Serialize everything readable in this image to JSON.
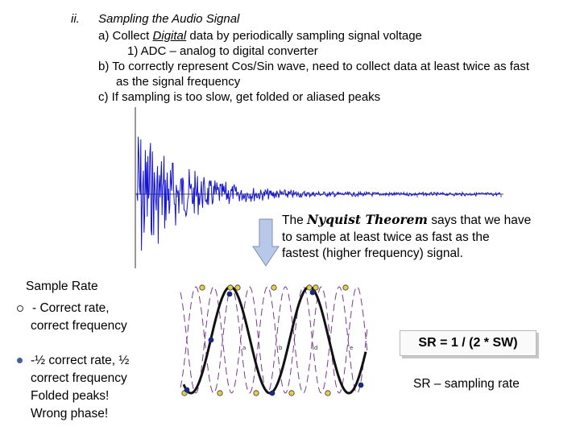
{
  "outline": {
    "numeral": "ii.",
    "heading": "Sampling the Audio Signal",
    "line_a_prefix": "a) Collect ",
    "line_a_word": "Digital",
    "line_a_suffix": " data by periodically sampling signal voltage",
    "line_a1": "1) ADC – analog to digital converter",
    "line_b": "b) To correctly represent Cos/Sin wave, need to collect data at least twice as fast",
    "line_b_cont": "as the signal frequency",
    "line_c": "c)  If sampling is too slow, get folded or aliased peaks"
  },
  "nyquist": {
    "pre": "The ",
    "theorem": "Nyquist Theorem",
    "post": " says that we have",
    "line2": "to sample at least twice as fast as the",
    "line3": "fastest (higher frequency) signal."
  },
  "sample_rate": {
    "title": "Sample Rate",
    "correct_line1": "- Correct rate,",
    "correct_line2": "correct frequency",
    "half_line1": "-½ correct rate, ½",
    "half_line2": "correct frequency",
    "half_line3": "Folded peaks!",
    "half_line4": "Wrong phase!"
  },
  "formula": "SR = 1 / (2 * SW)",
  "sr_definition": "SR – sampling rate",
  "colors": {
    "waveform": "#1515d0",
    "arrow_fill": "#b8c8e8",
    "arrow_stroke": "#8090b0",
    "fast_wave": "#7a3a8a",
    "correct_marker": "#e6d04a",
    "slow_marker": "#1a2a7a"
  }
}
